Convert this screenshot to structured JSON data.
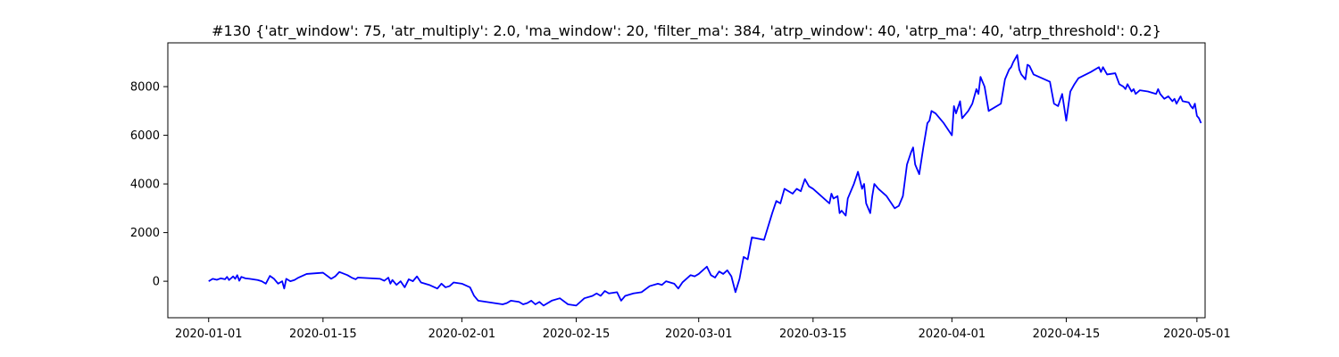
{
  "chart_data": {
    "type": "line",
    "title": "#130 {'atr_window': 75, 'atr_multiply': 2.0, 'ma_window': 20, 'filter_ma': 384, 'atrp_window': 40, 'atrp_ma': 40, 'atrp_threshold': 0.2}",
    "xlabel": "",
    "ylabel": "",
    "x_type": "date",
    "xlim": [
      "2019-12-27",
      "2020-05-02"
    ],
    "ylim": [
      -1500,
      9800
    ],
    "x_ticks": [
      "2020-01-01",
      "2020-01-15",
      "2020-02-01",
      "2020-02-15",
      "2020-03-01",
      "2020-03-15",
      "2020-04-01",
      "2020-04-15",
      "2020-05-01"
    ],
    "y_ticks": [
      0,
      2000,
      4000,
      6000,
      8000
    ],
    "grid": false,
    "legend": "none",
    "series": [
      {
        "color": "#0000ff",
        "points": [
          [
            "2020-01-01",
            0
          ],
          [
            "2020-01-01T12:00",
            100
          ],
          [
            "2020-01-02",
            60
          ],
          [
            "2020-01-02T12:00",
            120
          ],
          [
            "2020-01-03",
            80
          ],
          [
            "2020-01-03T06:00",
            180
          ],
          [
            "2020-01-03T12:00",
            50
          ],
          [
            "2020-01-04",
            200
          ],
          [
            "2020-01-04T06:00",
            100
          ],
          [
            "2020-01-04T12:00",
            250
          ],
          [
            "2020-01-04T18:00",
            20
          ],
          [
            "2020-01-05",
            180
          ],
          [
            "2020-01-05T12:00",
            120
          ],
          [
            "2020-01-06",
            100
          ],
          [
            "2020-01-07",
            50
          ],
          [
            "2020-01-07T12:00",
            0
          ],
          [
            "2020-01-08",
            -100
          ],
          [
            "2020-01-08T12:00",
            220
          ],
          [
            "2020-01-09",
            100
          ],
          [
            "2020-01-09T12:00",
            -100
          ],
          [
            "2020-01-10",
            0
          ],
          [
            "2020-01-10T06:00",
            -300
          ],
          [
            "2020-01-10T12:00",
            100
          ],
          [
            "2020-01-11",
            0
          ],
          [
            "2020-01-11T12:00",
            50
          ],
          [
            "2020-01-12",
            150
          ],
          [
            "2020-01-13",
            300
          ],
          [
            "2020-01-15",
            350
          ],
          [
            "2020-01-16",
            100
          ],
          [
            "2020-01-16T12:00",
            200
          ],
          [
            "2020-01-17",
            380
          ],
          [
            "2020-01-18",
            250
          ],
          [
            "2020-01-18T12:00",
            150
          ],
          [
            "2020-01-19",
            80
          ],
          [
            "2020-01-19T06:00",
            150
          ],
          [
            "2020-01-21",
            120
          ],
          [
            "2020-01-22",
            100
          ],
          [
            "2020-01-22T12:00",
            20
          ],
          [
            "2020-01-23",
            150
          ],
          [
            "2020-01-23T06:00",
            -100
          ],
          [
            "2020-01-23T12:00",
            50
          ],
          [
            "2020-01-24",
            -150
          ],
          [
            "2020-01-24T12:00",
            0
          ],
          [
            "2020-01-25",
            -250
          ],
          [
            "2020-01-25T12:00",
            80
          ],
          [
            "2020-01-26",
            0
          ],
          [
            "2020-01-26T12:00",
            200
          ],
          [
            "2020-01-27",
            -50
          ],
          [
            "2020-01-28",
            -150
          ],
          [
            "2020-01-29",
            -300
          ],
          [
            "2020-01-29T12:00",
            -100
          ],
          [
            "2020-01-30",
            -250
          ],
          [
            "2020-01-30T12:00",
            -200
          ],
          [
            "2020-01-31",
            -50
          ],
          [
            "2020-02-01",
            -100
          ],
          [
            "2020-02-02",
            -250
          ],
          [
            "2020-02-02T12:00",
            -600
          ],
          [
            "2020-02-03",
            -800
          ],
          [
            "2020-02-04",
            -850
          ],
          [
            "2020-02-05",
            -900
          ],
          [
            "2020-02-06",
            -950
          ],
          [
            "2020-02-06T12:00",
            -900
          ],
          [
            "2020-02-07",
            -800
          ],
          [
            "2020-02-08",
            -850
          ],
          [
            "2020-02-08T12:00",
            -950
          ],
          [
            "2020-02-09",
            -900
          ],
          [
            "2020-02-09T12:00",
            -800
          ],
          [
            "2020-02-10",
            -950
          ],
          [
            "2020-02-10T12:00",
            -850
          ],
          [
            "2020-02-11",
            -1000
          ],
          [
            "2020-02-12",
            -800
          ],
          [
            "2020-02-13",
            -700
          ],
          [
            "2020-02-14",
            -950
          ],
          [
            "2020-02-15",
            -1000
          ],
          [
            "2020-02-16",
            -700
          ],
          [
            "2020-02-17",
            -600
          ],
          [
            "2020-02-17T12:00",
            -500
          ],
          [
            "2020-02-18",
            -600
          ],
          [
            "2020-02-18T12:00",
            -400
          ],
          [
            "2020-02-19",
            -500
          ],
          [
            "2020-02-20",
            -450
          ],
          [
            "2020-02-20T12:00",
            -800
          ],
          [
            "2020-02-21",
            -600
          ],
          [
            "2020-02-22",
            -500
          ],
          [
            "2020-02-23",
            -450
          ],
          [
            "2020-02-24",
            -200
          ],
          [
            "2020-02-25",
            -100
          ],
          [
            "2020-02-25T12:00",
            -150
          ],
          [
            "2020-02-26",
            0
          ],
          [
            "2020-02-27",
            -100
          ],
          [
            "2020-02-27T12:00",
            -300
          ],
          [
            "2020-02-28",
            -50
          ],
          [
            "2020-02-29",
            250
          ],
          [
            "2020-02-29T12:00",
            200
          ],
          [
            "2020-03-01",
            300
          ],
          [
            "2020-03-02",
            600
          ],
          [
            "2020-03-02T12:00",
            250
          ],
          [
            "2020-03-03",
            150
          ],
          [
            "2020-03-03T12:00",
            400
          ],
          [
            "2020-03-04",
            300
          ],
          [
            "2020-03-04T12:00",
            450
          ],
          [
            "2020-03-05",
            200
          ],
          [
            "2020-03-05T12:00",
            -450
          ],
          [
            "2020-03-06",
            100
          ],
          [
            "2020-03-06T12:00",
            1000
          ],
          [
            "2020-03-07",
            900
          ],
          [
            "2020-03-07T12:00",
            1800
          ],
          [
            "2020-03-09",
            1700
          ],
          [
            "2020-03-10",
            2800
          ],
          [
            "2020-03-10T12:00",
            3300
          ],
          [
            "2020-03-11",
            3200
          ],
          [
            "2020-03-11T12:00",
            3800
          ],
          [
            "2020-03-12",
            3700
          ],
          [
            "2020-03-12T12:00",
            3600
          ],
          [
            "2020-03-13",
            3800
          ],
          [
            "2020-03-13T12:00",
            3700
          ],
          [
            "2020-03-14",
            4200
          ],
          [
            "2020-03-14T12:00",
            3900
          ],
          [
            "2020-03-15",
            3800
          ],
          [
            "2020-03-16",
            3500
          ],
          [
            "2020-03-17",
            3200
          ],
          [
            "2020-03-17T06:00",
            3600
          ],
          [
            "2020-03-17T12:00",
            3400
          ],
          [
            "2020-03-18",
            3500
          ],
          [
            "2020-03-18T06:00",
            2800
          ],
          [
            "2020-03-18T12:00",
            2900
          ],
          [
            "2020-03-19",
            2700
          ],
          [
            "2020-03-19T06:00",
            3400
          ],
          [
            "2020-03-20",
            4000
          ],
          [
            "2020-03-20T12:00",
            4500
          ],
          [
            "2020-03-21",
            3800
          ],
          [
            "2020-03-21T06:00",
            4000
          ],
          [
            "2020-03-21T12:00",
            3200
          ],
          [
            "2020-03-22",
            2800
          ],
          [
            "2020-03-22T06:00",
            3500
          ],
          [
            "2020-03-22T12:00",
            4000
          ],
          [
            "2020-03-23",
            3800
          ],
          [
            "2020-03-24",
            3500
          ],
          [
            "2020-03-25",
            3000
          ],
          [
            "2020-03-25T12:00",
            3100
          ],
          [
            "2020-03-26",
            3500
          ],
          [
            "2020-03-26T12:00",
            4800
          ],
          [
            "2020-03-27",
            5300
          ],
          [
            "2020-03-27T06:00",
            5500
          ],
          [
            "2020-03-27T12:00",
            4800
          ],
          [
            "2020-03-28",
            4400
          ],
          [
            "2020-03-28T12:00",
            5500
          ],
          [
            "2020-03-29",
            6500
          ],
          [
            "2020-03-29T06:00",
            6600
          ],
          [
            "2020-03-29T12:00",
            7000
          ],
          [
            "2020-03-30",
            6900
          ],
          [
            "2020-03-31",
            6500
          ],
          [
            "2020-04-01",
            6000
          ],
          [
            "2020-04-01T06:00",
            7200
          ],
          [
            "2020-04-01T12:00",
            6900
          ],
          [
            "2020-04-02",
            7400
          ],
          [
            "2020-04-02T06:00",
            6700
          ],
          [
            "2020-04-03",
            7000
          ],
          [
            "2020-04-03T12:00",
            7300
          ],
          [
            "2020-04-04",
            7900
          ],
          [
            "2020-04-04T06:00",
            7700
          ],
          [
            "2020-04-04T12:00",
            8400
          ],
          [
            "2020-04-05",
            8000
          ],
          [
            "2020-04-05T06:00",
            7500
          ],
          [
            "2020-04-05T12:00",
            7000
          ],
          [
            "2020-04-07",
            7300
          ],
          [
            "2020-04-07T12:00",
            8300
          ],
          [
            "2020-04-08",
            8700
          ],
          [
            "2020-04-08T06:00",
            8800
          ],
          [
            "2020-04-08T12:00",
            9000
          ],
          [
            "2020-04-09",
            9300
          ],
          [
            "2020-04-09T06:00",
            8700
          ],
          [
            "2020-04-09T12:00",
            8500
          ],
          [
            "2020-04-10",
            8300
          ],
          [
            "2020-04-10T06:00",
            8900
          ],
          [
            "2020-04-10T12:00",
            8850
          ],
          [
            "2020-04-11",
            8500
          ],
          [
            "2020-04-13",
            8200
          ],
          [
            "2020-04-13T12:00",
            7300
          ],
          [
            "2020-04-14",
            7200
          ],
          [
            "2020-04-14T12:00",
            7700
          ],
          [
            "2020-04-15",
            6600
          ],
          [
            "2020-04-15T06:00",
            7200
          ],
          [
            "2020-04-15T12:00",
            7800
          ],
          [
            "2020-04-16",
            8100
          ],
          [
            "2020-04-16T12:00",
            8350
          ],
          [
            "2020-04-18",
            8600
          ],
          [
            "2020-04-19",
            8800
          ],
          [
            "2020-04-19T06:00",
            8600
          ],
          [
            "2020-04-19T12:00",
            8800
          ],
          [
            "2020-04-20",
            8500
          ],
          [
            "2020-04-21",
            8550
          ],
          [
            "2020-04-21T12:00",
            8100
          ],
          [
            "2020-04-22",
            8000
          ],
          [
            "2020-04-22T06:00",
            7900
          ],
          [
            "2020-04-22T12:00",
            8100
          ],
          [
            "2020-04-23",
            7800
          ],
          [
            "2020-04-23T06:00",
            7900
          ],
          [
            "2020-04-23T12:00",
            7700
          ],
          [
            "2020-04-24",
            7850
          ],
          [
            "2020-04-25",
            7800
          ],
          [
            "2020-04-26",
            7700
          ],
          [
            "2020-04-26T06:00",
            7900
          ],
          [
            "2020-04-26T12:00",
            7700
          ],
          [
            "2020-04-27",
            7500
          ],
          [
            "2020-04-27T12:00",
            7600
          ],
          [
            "2020-04-28",
            7400
          ],
          [
            "2020-04-28T06:00",
            7500
          ],
          [
            "2020-04-28T12:00",
            7300
          ],
          [
            "2020-04-29",
            7600
          ],
          [
            "2020-04-29T06:00",
            7400
          ],
          [
            "2020-04-30",
            7350
          ],
          [
            "2020-04-30T06:00",
            7200
          ],
          [
            "2020-04-30T12:00",
            7100
          ],
          [
            "2020-04-30T18:00",
            7300
          ],
          [
            "2020-05-01",
            6800
          ],
          [
            "2020-05-01T06:00",
            6700
          ],
          [
            "2020-05-01T12:00",
            6500
          ]
        ]
      }
    ]
  }
}
